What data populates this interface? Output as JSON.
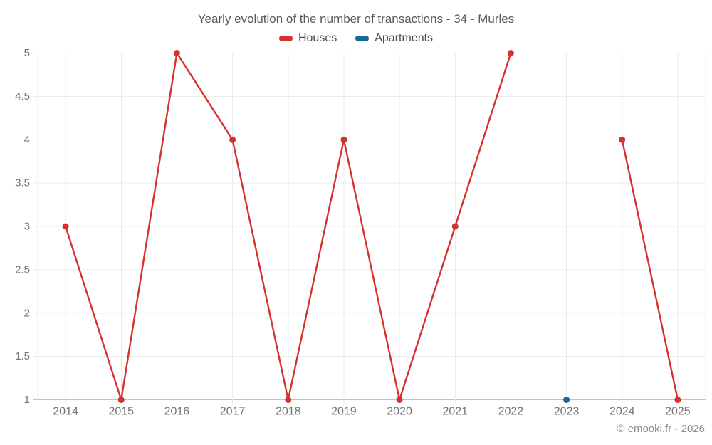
{
  "watermark": "© emooki.fr - 2026",
  "chart_data": {
    "type": "line",
    "title": "Yearly evolution of the number of transactions - 34 - Murles",
    "categories": [
      "2014",
      "2015",
      "2016",
      "2017",
      "2018",
      "2019",
      "2020",
      "2021",
      "2022",
      "2023",
      "2024",
      "2025"
    ],
    "series": [
      {
        "name": "Houses",
        "color": "#d5312d",
        "values": [
          3,
          1,
          5,
          4,
          1,
          4,
          1,
          3,
          5,
          null,
          4,
          1
        ]
      },
      {
        "name": "Apartments",
        "color": "#17699c",
        "values": [
          null,
          null,
          null,
          null,
          null,
          null,
          null,
          null,
          null,
          1,
          null,
          null
        ]
      }
    ],
    "ylim": [
      1,
      5
    ],
    "ytick_step": 0.5,
    "yticks": [
      "1",
      "1.5",
      "2",
      "2.5",
      "3",
      "3.5",
      "4",
      "4.5",
      "5"
    ],
    "grid": true,
    "legend_position": "top",
    "colors": {
      "gridline": "#ebebeb",
      "axis_line": "#c2c2c2",
      "tick_label": "#737373",
      "title_text": "#595959",
      "watermark_text": "#8d8d8d"
    }
  }
}
